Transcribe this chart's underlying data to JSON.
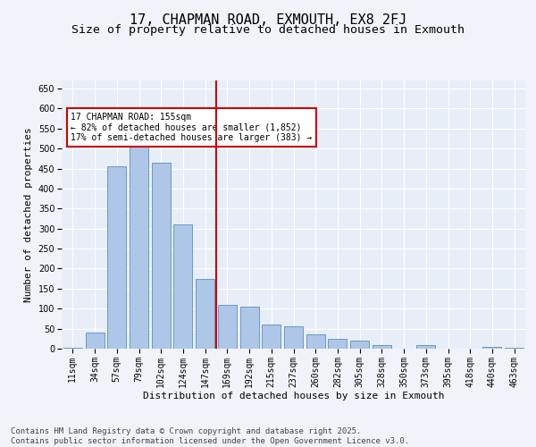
{
  "title": "17, CHAPMAN ROAD, EXMOUTH, EX8 2FJ",
  "subtitle": "Size of property relative to detached houses in Exmouth",
  "xlabel": "Distribution of detached houses by size in Exmouth",
  "ylabel": "Number of detached properties",
  "categories": [
    "11sqm",
    "34sqm",
    "57sqm",
    "79sqm",
    "102sqm",
    "124sqm",
    "147sqm",
    "169sqm",
    "192sqm",
    "215sqm",
    "237sqm",
    "260sqm",
    "282sqm",
    "305sqm",
    "328sqm",
    "350sqm",
    "373sqm",
    "395sqm",
    "418sqm",
    "440sqm",
    "463sqm"
  ],
  "values": [
    2,
    40,
    455,
    525,
    465,
    310,
    175,
    110,
    105,
    60,
    55,
    35,
    25,
    20,
    8,
    0,
    8,
    0,
    0,
    5,
    2
  ],
  "bar_color": "#aec6e8",
  "bar_edge_color": "#5a8fc0",
  "plot_bg_color": "#e8eef8",
  "fig_bg_color": "#f0f4fa",
  "grid_color": "#ffffff",
  "vline_color": "#cc0000",
  "vline_x": 6.5,
  "annotation_text": "17 CHAPMAN ROAD: 155sqm\n← 82% of detached houses are smaller (1,852)\n17% of semi-detached houses are larger (383) →",
  "annotation_box_color": "#ffffff",
  "annotation_box_edge": "#cc0000",
  "ylim": [
    0,
    670
  ],
  "yticks": [
    0,
    50,
    100,
    150,
    200,
    250,
    300,
    350,
    400,
    450,
    500,
    550,
    600,
    650
  ],
  "footer_line1": "Contains HM Land Registry data © Crown copyright and database right 2025.",
  "footer_line2": "Contains public sector information licensed under the Open Government Licence v3.0.",
  "title_fontsize": 11,
  "subtitle_fontsize": 9.5,
  "axis_label_fontsize": 8,
  "tick_fontsize": 7,
  "annotation_fontsize": 7,
  "footer_fontsize": 6.5
}
